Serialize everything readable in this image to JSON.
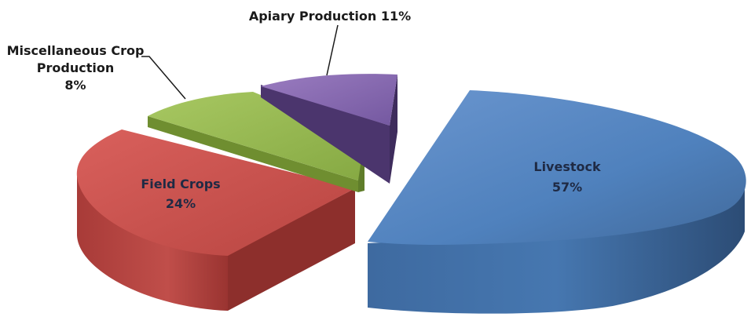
{
  "chart_data": {
    "type": "pie",
    "style": "3d-exploded",
    "slices": [
      {
        "label": "Livestock",
        "value": 57,
        "percent_label": "57%",
        "color": "#4f81bd"
      },
      {
        "label": "Field Crops",
        "value": 24,
        "percent_label": "24%",
        "color": "#c0504d"
      },
      {
        "label": "Miscellaneous Crop Production",
        "value": 8,
        "percent_label": "8%",
        "color": "#9bbb59"
      },
      {
        "label": "Apiary Production",
        "value": 11,
        "percent_label": "11%",
        "color": "#8064a2"
      }
    ],
    "labels": {
      "livestock_name": "Livestock",
      "livestock_pct": "57%",
      "field_name": "Field Crops",
      "field_pct": "24%",
      "misc_line1": "Miscellaneous Crop",
      "misc_line2": "Production",
      "misc_pct": "8%",
      "apiary": "Apiary Production 11%"
    }
  }
}
